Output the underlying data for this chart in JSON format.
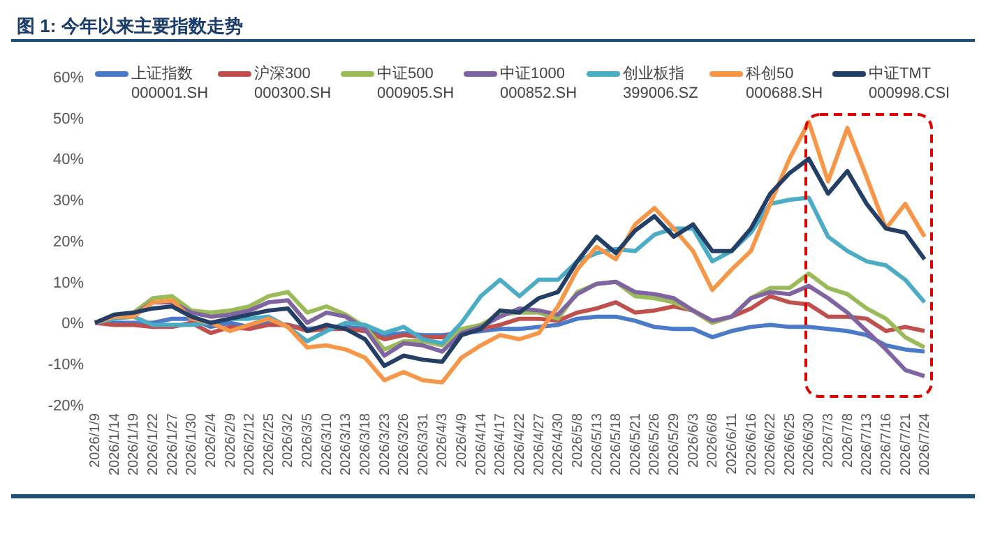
{
  "chart_data": {
    "type": "line",
    "title": "图 1: 今年以来主要指数走势",
    "categories": [
      "2026/1/9",
      "2026/1/14",
      "2026/1/19",
      "2026/1/22",
      "2026/1/27",
      "2026/1/30",
      "2026/2/4",
      "2026/2/9",
      "2026/2/12",
      "2026/2/25",
      "2026/3/2",
      "2026/3/5",
      "2026/3/10",
      "2026/3/13",
      "2026/3/18",
      "2026/3/23",
      "2026/3/26",
      "2026/3/31",
      "2026/4/3",
      "2026/4/9",
      "2026/4/14",
      "2026/4/17",
      "2026/4/22",
      "2026/4/27",
      "2026/4/30",
      "2026/5/8",
      "2026/5/13",
      "2026/5/18",
      "2026/5/21",
      "2026/5/26",
      "2026/5/29",
      "2026/6/3",
      "2026/6/8",
      "2026/6/11",
      "2026/6/16",
      "2026/6/22",
      "2026/6/25",
      "2026/6/30",
      "2026/7/3",
      "2026/7/8",
      "2026/7/13",
      "2026/7/16",
      "2026/7/21",
      "2026/7/24"
    ],
    "series": [
      {
        "name": "上证指数 000001.SH",
        "color": "#4a7ac8",
        "values": [
          0,
          0,
          0,
          0,
          1,
          1,
          -1,
          0,
          -1,
          0,
          -0.5,
          -1.5,
          -1,
          -1,
          -1.5,
          -3,
          -2.5,
          -3,
          -3,
          -2.5,
          -2,
          -1.5,
          -1.5,
          -1,
          -0.5,
          1,
          1.5,
          1.5,
          0.5,
          -1,
          -1.5,
          -1.5,
          -3.5,
          -2,
          -1,
          -0.5,
          -1,
          -1,
          -1.5,
          -2,
          -3,
          -5.5,
          -6.5,
          -7
        ]
      },
      {
        "name": "沪深300 000300.SH",
        "color": "#c0504d",
        "values": [
          0,
          -0.5,
          -0.5,
          -1,
          -1,
          0,
          -2.5,
          -1,
          -1.5,
          -0.5,
          -0.5,
          -2,
          -1.5,
          -1.5,
          -2,
          -4,
          -3,
          -3.5,
          -3.5,
          -2.5,
          -1.5,
          -0.5,
          1,
          1,
          0.5,
          2.5,
          3.5,
          5,
          2.5,
          3,
          4,
          3,
          0,
          1.5,
          3.5,
          6.5,
          5,
          4.5,
          1.5,
          1.5,
          1,
          -2,
          -1,
          -2
        ]
      },
      {
        "name": "中证500 000905.SH",
        "color": "#9bbb59",
        "values": [
          0,
          1.5,
          2.5,
          6,
          6.5,
          3,
          2.5,
          3,
          4,
          6.5,
          7.5,
          2.5,
          4,
          2,
          -1,
          -6.5,
          -4.5,
          -4.5,
          -5.5,
          -1.5,
          -0.5,
          2,
          2.5,
          2.5,
          1,
          7.5,
          9.5,
          10,
          6.5,
          6,
          5,
          3,
          0,
          1.5,
          6,
          8.5,
          8.5,
          12,
          8.5,
          7,
          3.5,
          1,
          -3.5,
          -6
        ]
      },
      {
        "name": "中证1000 000852.SH",
        "color": "#8064a2",
        "values": [
          0,
          1.5,
          2,
          5,
          5,
          2.5,
          1.5,
          2,
          3,
          5,
          5.5,
          0,
          2.5,
          1.5,
          -1.5,
          -8,
          -5,
          -5.5,
          -7,
          -2.5,
          -1,
          1.5,
          3.5,
          3,
          2,
          7,
          9.5,
          10,
          7.5,
          7,
          6,
          3,
          0.5,
          1.5,
          6,
          7.5,
          7,
          9,
          6,
          2.5,
          -2,
          -6.5,
          -11.5,
          -13
        ]
      },
      {
        "name": "创业板指 399006.SZ",
        "color": "#4bacc6",
        "values": [
          0,
          1,
          1.5,
          -0.5,
          -0.5,
          -0.5,
          0,
          1,
          1,
          1.5,
          -1,
          -4.5,
          -2,
          0,
          -0.5,
          -2.5,
          -1,
          -4,
          -5,
          0,
          6.5,
          10.5,
          6.5,
          10.5,
          10.5,
          15,
          17,
          18,
          17.5,
          21.5,
          23,
          23,
          15,
          17.5,
          22,
          29,
          30,
          30.5,
          21,
          17.5,
          15,
          14,
          10.5,
          5
        ]
      },
      {
        "name": "科创50 000688.SH",
        "color": "#f79646",
        "values": [
          0,
          1.5,
          1.5,
          5,
          5.5,
          1,
          0,
          -2,
          -0.5,
          1,
          -1,
          -6,
          -5.5,
          -6.5,
          -8.5,
          -14,
          -12,
          -14,
          -14.5,
          -8.5,
          -5.5,
          -3,
          -4,
          -2.5,
          4,
          13,
          18.5,
          15.5,
          24,
          28,
          23,
          17.5,
          8,
          13,
          17.5,
          29,
          40,
          49,
          34.5,
          47.5,
          35.5,
          23,
          29,
          21
        ]
      },
      {
        "name": "中证TMT 000998.CSI",
        "color": "#243f66",
        "values": [
          0,
          2,
          2.5,
          3.5,
          4,
          1.5,
          0,
          1,
          2,
          3,
          3.5,
          -2,
          -0.5,
          -1.5,
          -4,
          -10.5,
          -8,
          -9,
          -9.5,
          -3,
          -1.5,
          3,
          2.5,
          6,
          7.5,
          15,
          21,
          17,
          22.5,
          26,
          21,
          24,
          17.5,
          17.5,
          23,
          31.5,
          36.5,
          40,
          31.5,
          37,
          29,
          23,
          22,
          15.5
        ]
      }
    ],
    "ylim": [
      -20,
      60
    ],
    "yticks": [
      {
        "value": -20,
        "label": "-20%"
      },
      {
        "value": -10,
        "label": "-10%"
      },
      {
        "value": 0,
        "label": "0%"
      },
      {
        "value": 10,
        "label": "10%"
      },
      {
        "value": 20,
        "label": "20%"
      },
      {
        "value": 30,
        "label": "30%"
      },
      {
        "value": 40,
        "label": "40%"
      },
      {
        "value": 50,
        "label": "50%"
      },
      {
        "value": 60,
        "label": "60%"
      }
    ],
    "grid": false,
    "legend": "top",
    "marker": "none",
    "line_style": "solid"
  }
}
